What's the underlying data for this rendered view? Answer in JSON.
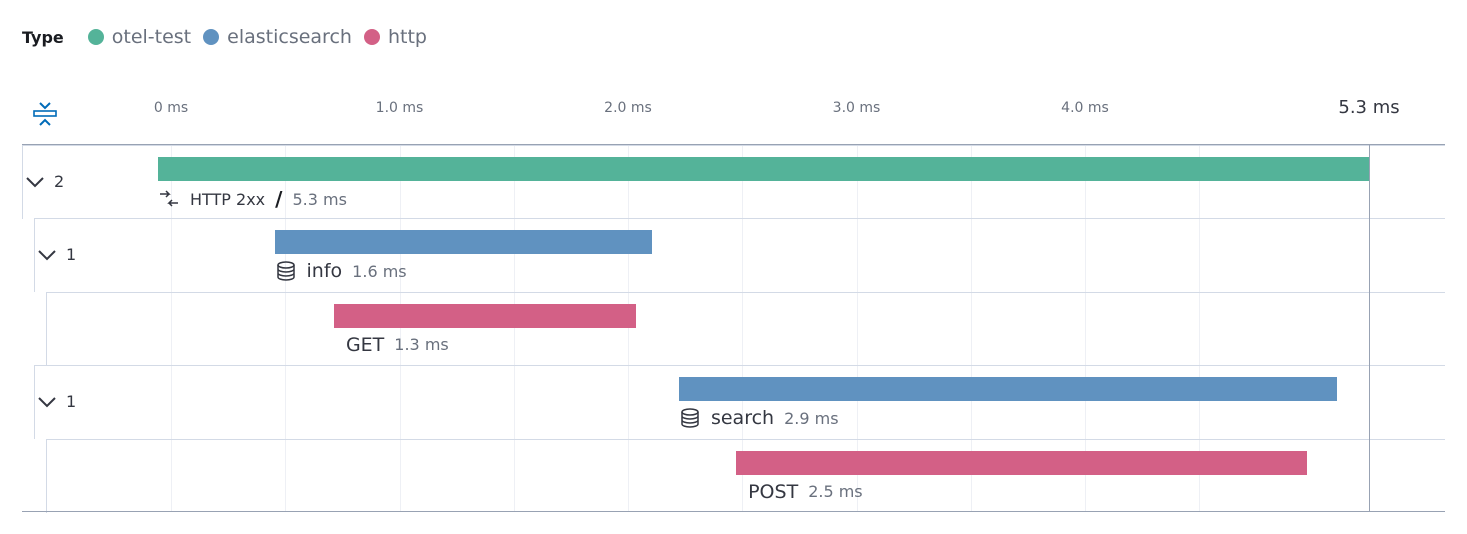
{
  "legend": {
    "title": "Type",
    "items": [
      {
        "label": "otel-test",
        "color": "#54b399"
      },
      {
        "label": "elasticsearch",
        "color": "#6092c0"
      },
      {
        "label": "http",
        "color": "#d36086"
      }
    ]
  },
  "axis": {
    "ticks": [
      "0 ms",
      "1.0 ms",
      "2.0 ms",
      "3.0 ms",
      "4.0 ms"
    ],
    "tick_values": [
      0,
      1,
      2,
      3,
      4
    ],
    "max_label": "5.3 ms"
  },
  "rows": [
    {
      "toggle": "2",
      "name": "HTTP 2xx",
      "separator": "/",
      "duration": "5.3 ms",
      "start_ms": 0,
      "duration_ms": 5.3,
      "color": "#54b399",
      "icon": "transaction-icon",
      "level": 0
    },
    {
      "toggle": "1",
      "name": "info",
      "duration": "1.6 ms",
      "start_ms": 0.51,
      "duration_ms": 1.65,
      "color": "#6092c0",
      "icon": "database-icon",
      "level": 1
    },
    {
      "name": "GET",
      "duration": "1.3 ms",
      "start_ms": 0.77,
      "duration_ms": 1.32,
      "color": "#d36086",
      "level": 2
    },
    {
      "toggle": "1",
      "name": "search",
      "duration": "2.9 ms",
      "start_ms": 2.28,
      "duration_ms": 2.88,
      "color": "#6092c0",
      "icon": "database-icon",
      "level": 1
    },
    {
      "name": "POST",
      "duration": "2.5 ms",
      "start_ms": 2.53,
      "duration_ms": 2.5,
      "color": "#d36086",
      "level": 2
    }
  ]
}
